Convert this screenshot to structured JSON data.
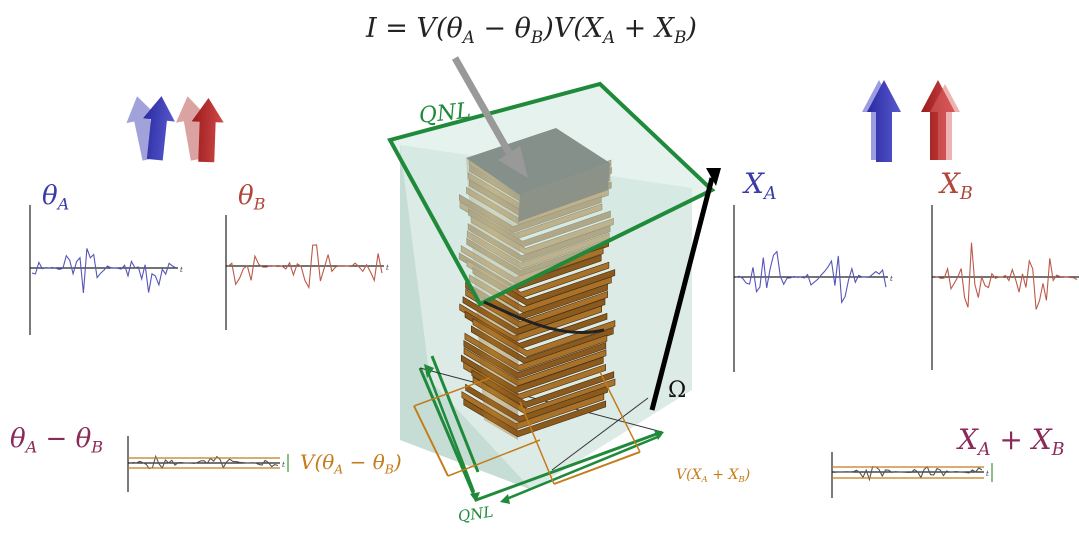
{
  "equation": "I = V(θ_A − θ_B)V(X_A + X_B)",
  "labels": {
    "qnl_top": "QNL",
    "qnl_bottom": "QNL",
    "omega": "Ω",
    "v_theta": "V(θ_A − θ_B)",
    "v_x": "V(X_A + X_B)",
    "theta_a": "θ_A",
    "theta_b": "θ_B",
    "x_a": "X_A",
    "x_b": "X_B",
    "theta_diff": "θ_A − θ_B",
    "x_sum": "X_A + X_B",
    "time_axis": "t"
  },
  "colors": {
    "mode_a": "#3a3aa8",
    "mode_b": "#b0463a",
    "combined": "#8a2a5a",
    "qnl_green": "#1f8a3a",
    "variance_orange": "#c47b1a",
    "stack_brown": "#8a5a1e",
    "stack_top": "#2b2626"
  },
  "icons": [
    "arrow-pair-tilted-icon",
    "arrow-pair-upright-icon"
  ]
}
